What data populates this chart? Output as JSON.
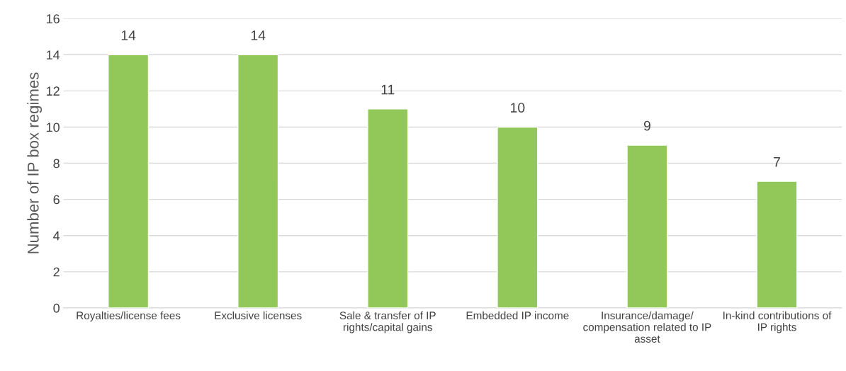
{
  "chart_data": {
    "type": "bar",
    "ylabel": "Number of IP box regimes",
    "categories": [
      "Royalties/license fees",
      "Exclusive licenses",
      "Sale & transfer of IP rights/capital gains",
      "Embedded IP income",
      "Insurance/damage/ compensation related to IP asset",
      "In-kind contributions of IP rights"
    ],
    "values": [
      14,
      14,
      11,
      10,
      9,
      7
    ],
    "color": "#92c85a",
    "ylim": [
      0,
      16
    ],
    "yticks": [
      0,
      2,
      4,
      6,
      8,
      10,
      12,
      14,
      16
    ],
    "grid": "y",
    "data_labels": true
  }
}
